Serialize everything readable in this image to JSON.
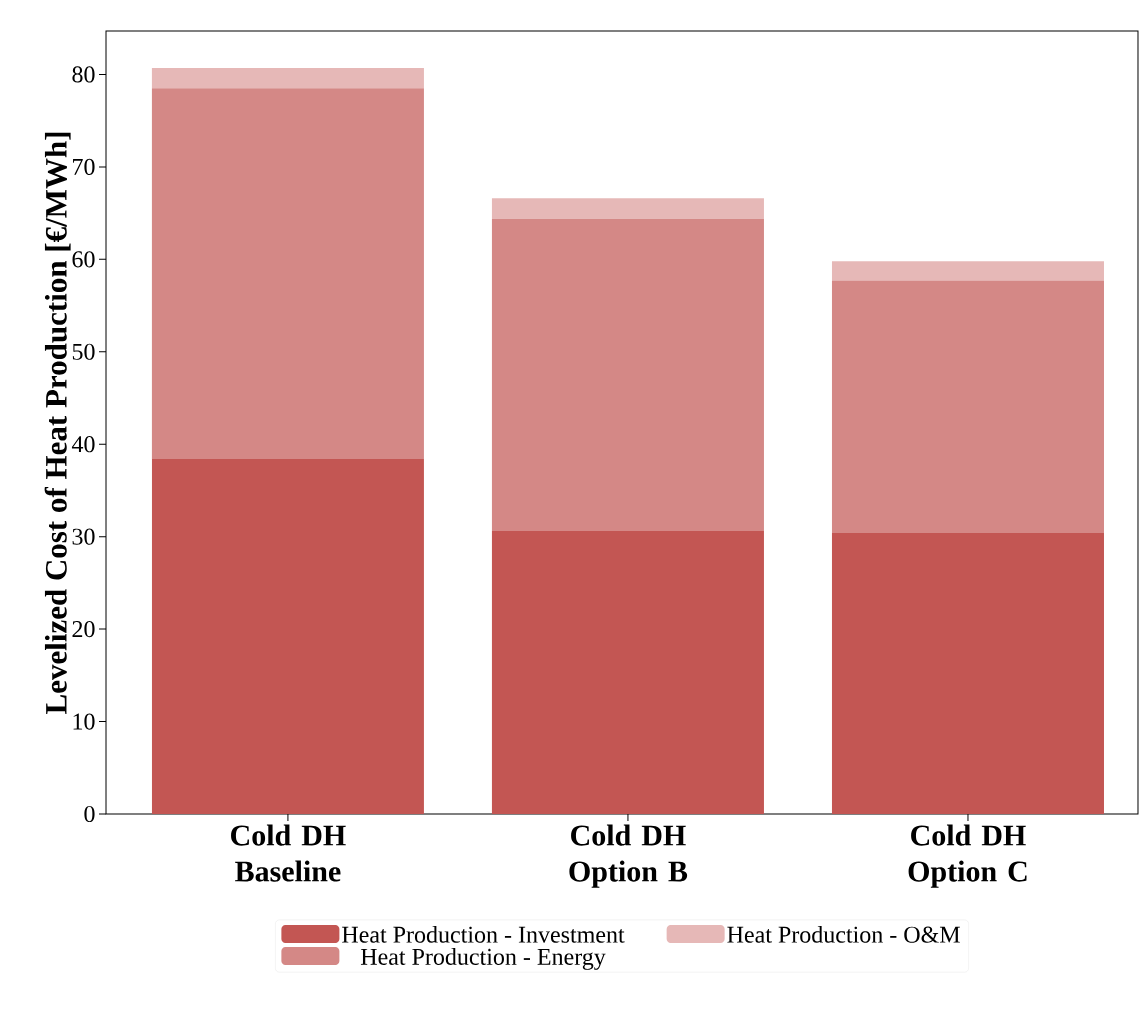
{
  "chart_data": {
    "type": "bar",
    "stacked": true,
    "ylabel": "Levelized Cost of Heat Production [€/MWh]",
    "categories": [
      "Cold DH Baseline",
      "Cold DH Option B",
      "Cold DH Option C"
    ],
    "series": [
      {
        "name": "Heat Production - Investment",
        "color": "#c35653",
        "values": [
          38.4,
          30.6,
          30.4
        ]
      },
      {
        "name": "Heat Production - Energy",
        "color": "#d48886",
        "values": [
          40.1,
          33.8,
          27.3
        ]
      },
      {
        "name": "Heat Production - O&M",
        "color": "#e6b8b7",
        "values": [
          2.2,
          2.2,
          2.1
        ]
      }
    ],
    "ylim": [
      0,
      84.7
    ],
    "yticks": [
      0,
      10,
      20,
      30,
      40,
      50,
      60,
      70,
      80
    ],
    "legend": "bottom",
    "grid": false
  }
}
